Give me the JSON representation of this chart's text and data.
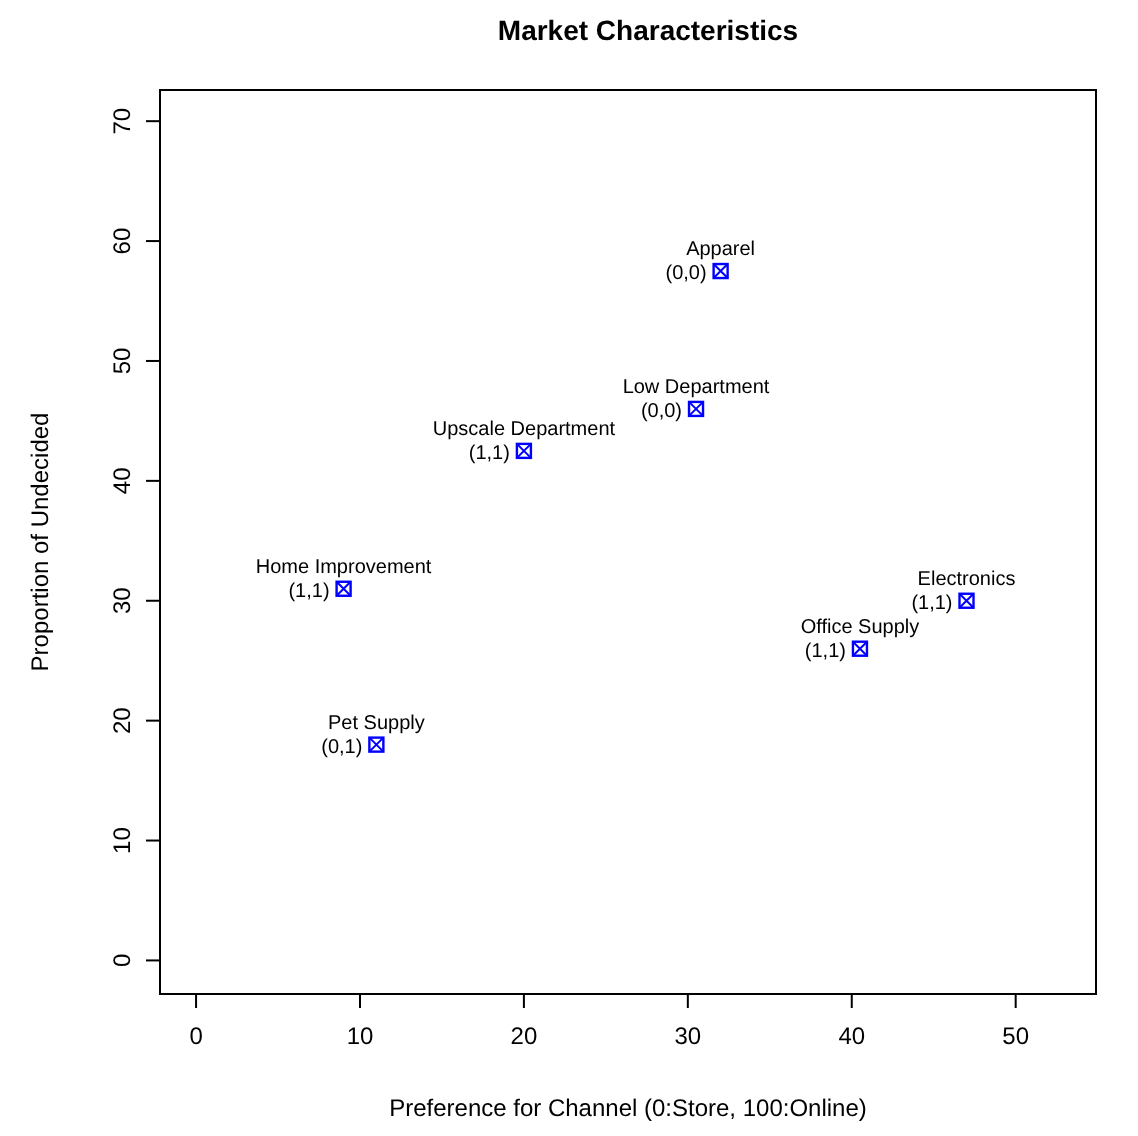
{
  "chart_data": {
    "type": "scatter",
    "title": "Market Characteristics",
    "xlabel": "Preference for Channel (0:Store, 100:Online)",
    "ylabel": "Proportion of Undecided",
    "x": [
      32,
      30.5,
      20,
      9,
      47,
      40.5,
      11
    ],
    "series": [
      {
        "color": "#0000ff",
        "values": [
          57.5,
          46,
          42.5,
          31,
          30,
          26,
          18
        ]
      }
    ],
    "annotations": [
      {
        "text": "Apparel",
        "x": 32,
        "y": 57.5
      },
      {
        "text": "(0,0)",
        "x": 32,
        "y": 57.5
      },
      {
        "text": "Low Department",
        "x": 30.5,
        "y": 46
      },
      {
        "text": "(0,0)",
        "x": 30.5,
        "y": 46
      },
      {
        "text": "Upscale Department",
        "x": 20,
        "y": 42.5
      },
      {
        "text": "(1,1)",
        "x": 20,
        "y": 42.5
      },
      {
        "text": "Home Improvement",
        "x": 9,
        "y": 31
      },
      {
        "text": "(1,1)",
        "x": 9,
        "y": 31
      },
      {
        "text": "Electronics",
        "x": 47,
        "y": 30
      },
      {
        "text": "(1,1)",
        "x": 47,
        "y": 30
      },
      {
        "text": "Office Supply",
        "x": 40.5,
        "y": 26
      },
      {
        "text": "(1,1)",
        "x": 40.5,
        "y": 26
      },
      {
        "text": "Pet Supply",
        "x": 11,
        "y": 18
      },
      {
        "text": "(0,1)",
        "x": 11,
        "y": 18
      }
    ],
    "xlim": [
      -2.2,
      54.9
    ],
    "ylim": [
      -2.8,
      72.6
    ],
    "xticks": [
      0,
      10,
      20,
      30,
      40,
      50
    ],
    "yticks": [
      0,
      10,
      20,
      30,
      40,
      50,
      60,
      70
    ],
    "marker": "square",
    "grid": false
  }
}
